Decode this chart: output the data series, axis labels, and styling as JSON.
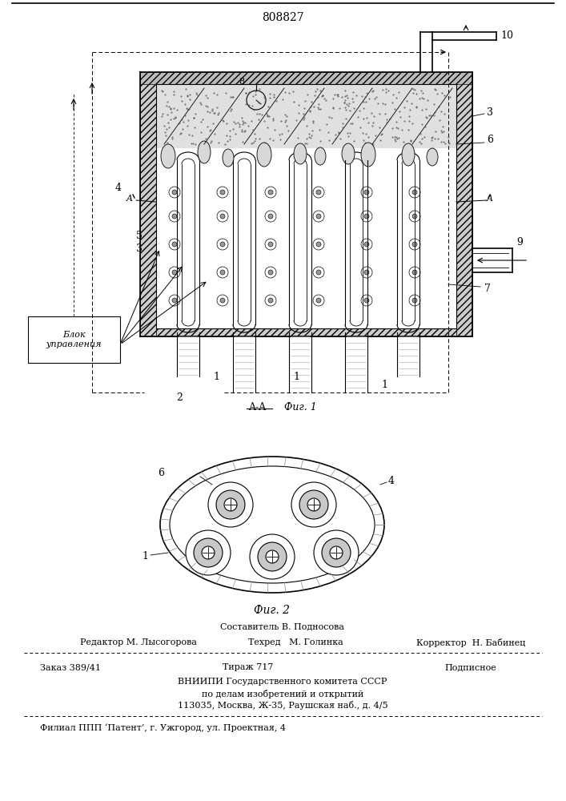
{
  "patent_number": "808827",
  "bg": "#ffffff",
  "fig1_label": "Фиг. 1",
  "fig2_label": "Фиг. 2",
  "block_text": "Блок\nуправления",
  "составитель": "Составитель В. Подносова",
  "редактор": "Редактор М. Лысогорова",
  "техред": "Техред   М. Голинка",
  "корректор": "Корректор  Н. Бабинец",
  "заказ": "Заказ 389/41",
  "тираж": "Тираж 717",
  "подписное": "Подписное",
  "вниипи": "ВНИИПИ Государственного комитета СССР",
  "вниипи2": "по делам изобретений и открытий",
  "адрес": "113035, Москва, Ж-35, Раушская наб., д. 4/5",
  "филиал": "Филиал ППП ‘Патент’, г. Ужгород, ул. Проектная, 4",
  "label_8": "8",
  "label_10": "10",
  "label_3a": "3",
  "label_6": "6",
  "label_4": "4",
  "label_A_left": "A",
  "label_A_right": "A",
  "label_5": "5",
  "label_3b": "3",
  "label_9": "9",
  "label_7": "7",
  "label_2": "2",
  "label_1a": "1",
  "label_1b": "1",
  "label_1c": "1",
  "label_AA": "A-A",
  "label_6_fig2": "6",
  "label_4_fig2": "4",
  "label_1_fig2": "1"
}
